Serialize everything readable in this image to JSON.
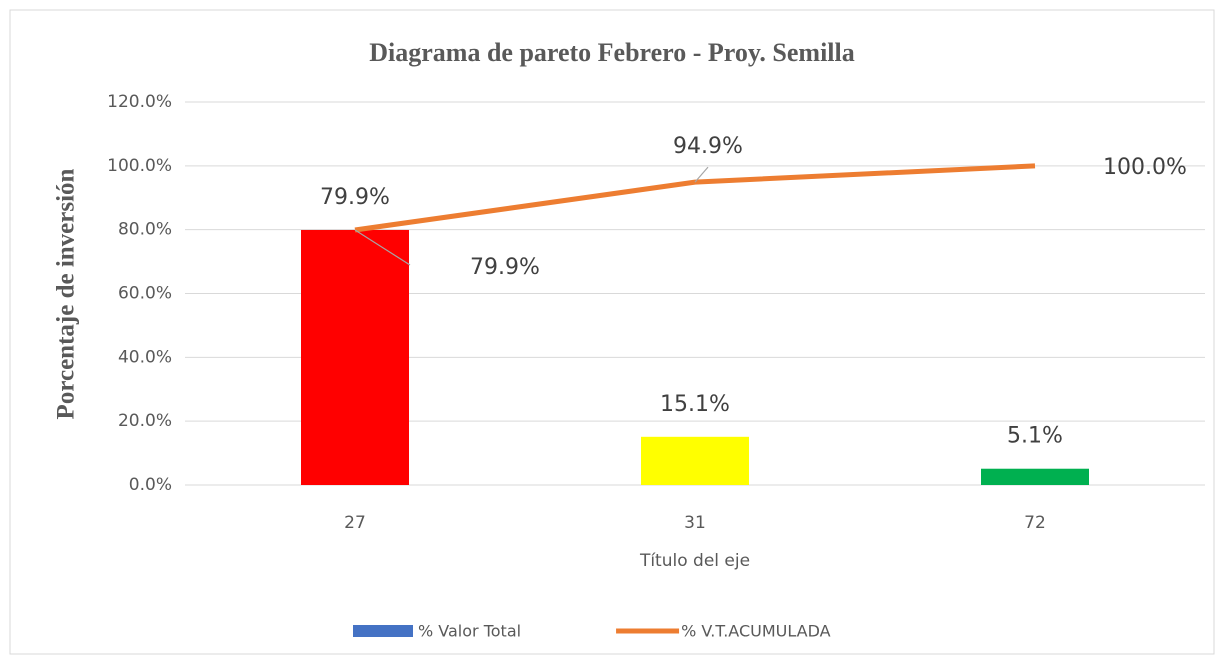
{
  "chart_data": {
    "type": "bar",
    "title": "Diagrama de pareto Febrero - Proy. Semilla",
    "y_label": "Porcentaje de inversión",
    "x_label": "Título del eje",
    "categories": [
      "27",
      "31",
      "72"
    ],
    "series": [
      {
        "name": "% Valor Total",
        "type": "bar",
        "color": "#4472c4",
        "colors": [
          "#ff0000",
          "#ffff00",
          "#00b050"
        ],
        "values": [
          79.9,
          15.1,
          5.1
        ],
        "value_labels": [
          "79.9%",
          "15.1%",
          "5.1%"
        ]
      },
      {
        "name": "% V.T.ACUMULADA",
        "type": "line",
        "color": "#ed7d31",
        "values": [
          79.9,
          94.9,
          100
        ],
        "value_labels": [
          "79.9%",
          "94.9%",
          "100.0%"
        ]
      }
    ],
    "ylim": [
      0,
      120
    ],
    "yticks": [
      {
        "value": 0,
        "label": "0.0%"
      },
      {
        "value": 20,
        "label": "20.0%"
      },
      {
        "value": 40,
        "label": "40.0%"
      },
      {
        "value": 60,
        "label": "60.0%"
      },
      {
        "value": 80,
        "label": "80.0%"
      },
      {
        "value": 100,
        "label": "100.0%"
      },
      {
        "value": 120,
        "label": "120.0%"
      }
    ],
    "grid": true,
    "legend": "bottom"
  }
}
